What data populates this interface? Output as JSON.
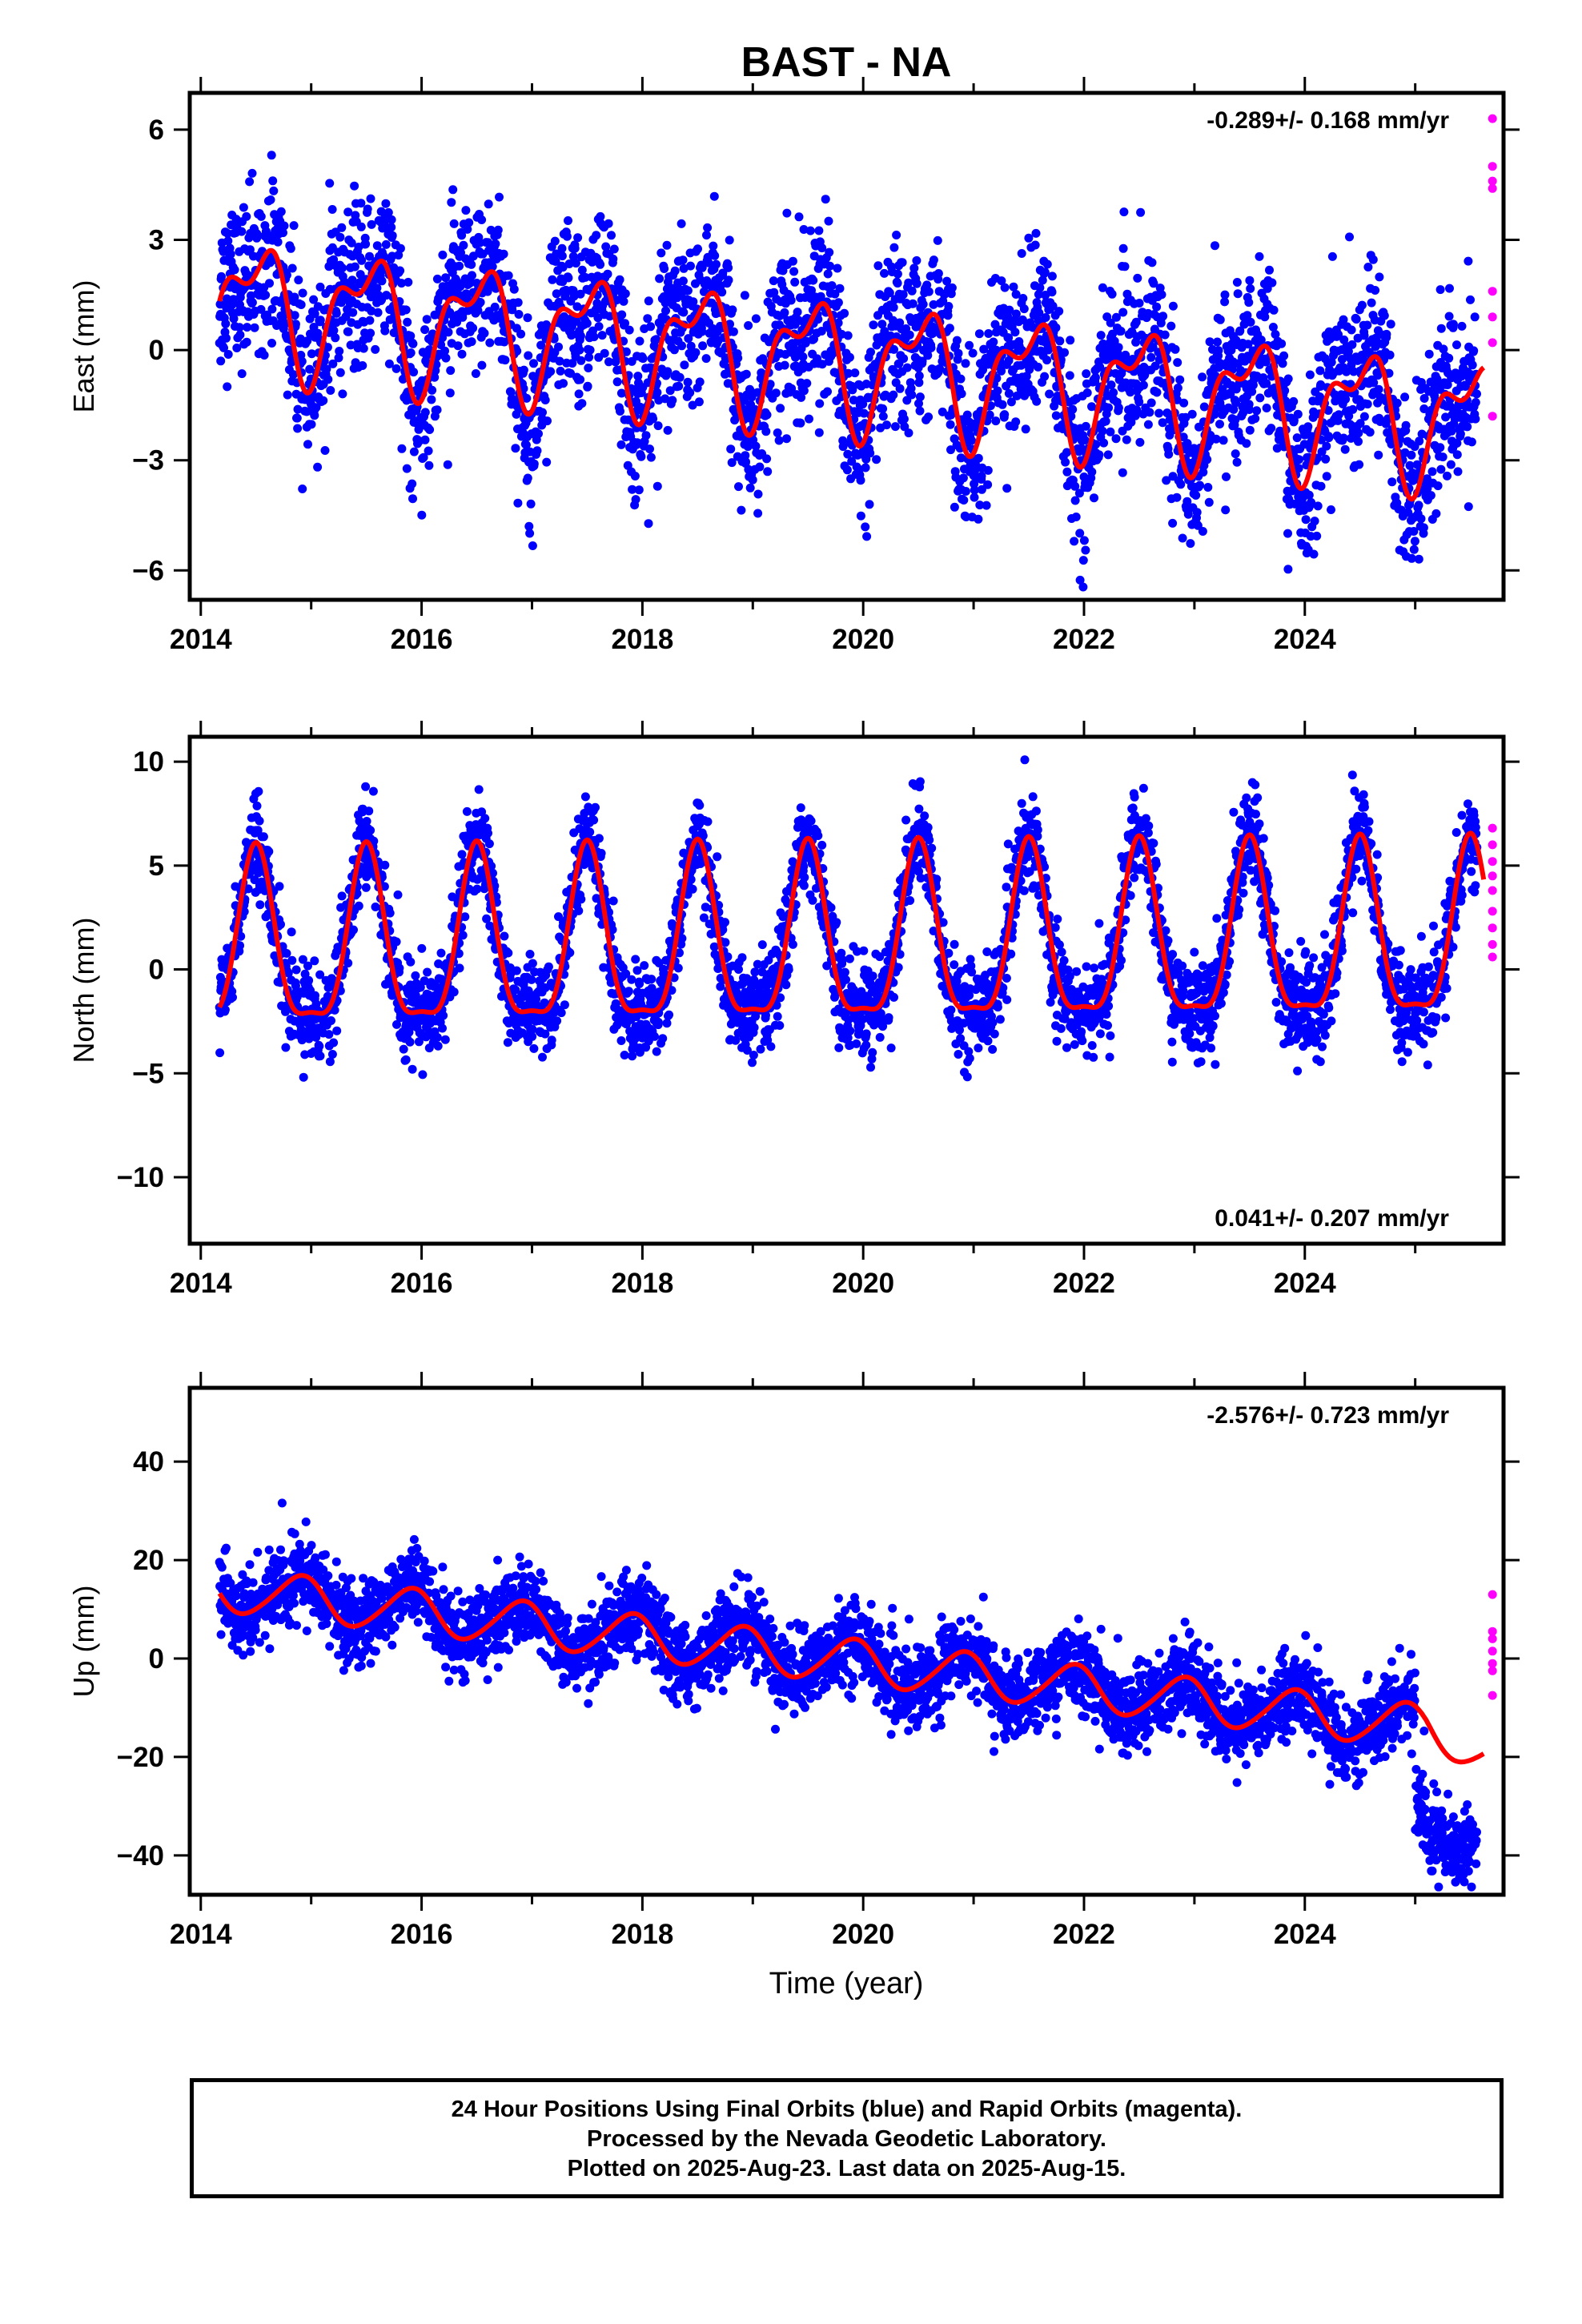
{
  "title": "BAST - NA",
  "x_axis_label": "Time (year)",
  "footer": {
    "line1": "24 Hour Positions Using Final Orbits (blue) and Rapid Orbits (magenta).",
    "line2": "Processed by the Nevada Geodetic Laboratory.",
    "line3": "Plotted on 2025-Aug-23. Last data on 2025-Aug-15."
  },
  "colors": {
    "final_orbits": "#0000ff",
    "rapid_orbits": "#ff00ff",
    "model_fit": "#ff0000"
  },
  "chart_data": [
    {
      "type": "scatter",
      "panel": "east",
      "ylabel": "East (mm)",
      "xlim": [
        2013.9,
        2025.8
      ],
      "ylim": [
        -6.8,
        7
      ],
      "xticks": [
        2014,
        2016,
        2018,
        2020,
        2022,
        2024
      ],
      "yticks": [
        -6,
        -3,
        0,
        3,
        6
      ],
      "annotation": "-0.289+/- 0.168 mm/yr",
      "annotation_position": "top-right",
      "grid": false,
      "model": {
        "trend_mm_per_yr": -0.289,
        "offset_mm": 1.3,
        "annual_amp_mm": 1.5,
        "annual_phase_yr": 0.5,
        "semiannual_amp_mm": 0.8,
        "semiannual_phase_yr": 0.2,
        "noise_mm": 1.1
      },
      "rapid_orbit_values": [
        6.3,
        5.0,
        4.6,
        4.4,
        1.6,
        0.9,
        0.2,
        -1.8
      ]
    },
    {
      "type": "scatter",
      "panel": "north",
      "ylabel": "North (mm)",
      "xlim": [
        2013.9,
        2025.8
      ],
      "ylim": [
        -13.2,
        11.2
      ],
      "xticks": [
        2014,
        2016,
        2018,
        2020,
        2022,
        2024
      ],
      "yticks": [
        -10,
        -5,
        0,
        5,
        10
      ],
      "annotation": "0.041+/- 0.207 mm/yr",
      "annotation_position": "bottom-right",
      "grid": false,
      "model": {
        "trend_mm_per_yr": 0.041,
        "offset_mm": 0.8,
        "annual_amp_mm": 4.1,
        "annual_phase_yr": 0.5,
        "semiannual_amp_mm": 1.2,
        "semiannual_phase_yr": 0.0,
        "noise_mm": 1.1
      },
      "rapid_orbit_values": [
        6.8,
        6.0,
        5.2,
        4.5,
        3.8,
        2.8,
        2.0,
        1.2,
        0.6
      ]
    },
    {
      "type": "scatter",
      "panel": "up",
      "ylabel": "Up (mm)",
      "xlim": [
        2013.9,
        2025.8
      ],
      "ylim": [
        -48,
        55
      ],
      "xticks": [
        2014,
        2016,
        2018,
        2020,
        2022,
        2024
      ],
      "yticks": [
        -40,
        -20,
        0,
        20,
        40
      ],
      "annotation": "-2.576+/- 0.723 mm/yr",
      "annotation_position": "top-right",
      "grid": false,
      "model": {
        "trend_mm_per_yr": -2.576,
        "offset_mm": 14,
        "annual_amp_mm": 4.5,
        "annual_phase_yr": 0.9,
        "semiannual_amp_mm": 0.5,
        "semiannual_phase_yr": 0.0,
        "noise_mm": 4.0
      },
      "rapid_orbit_values": [
        13,
        5.5,
        4,
        1.5,
        -1,
        -2.5,
        -7.5
      ]
    }
  ],
  "time_series": {
    "start": 2014.17,
    "end": 2025.62,
    "last_data": "2025-Aug-15"
  }
}
